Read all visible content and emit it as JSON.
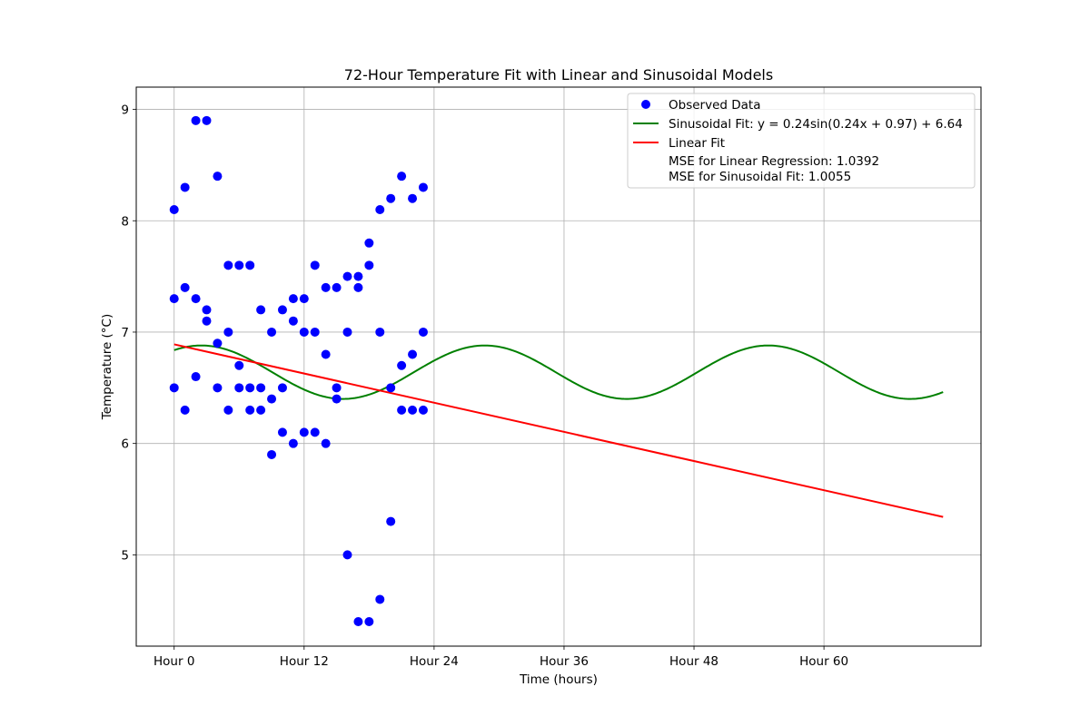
{
  "chart_data": {
    "type": "scatter",
    "title": "72-Hour Temperature Fit with Linear and Sinusoidal Models",
    "xlabel": "Time (hours)",
    "ylabel": "Temperature (°C)",
    "xlim": [
      -3.5,
      74.5
    ],
    "ylim": [
      4.18,
      9.2
    ],
    "xticks": [
      0,
      12,
      24,
      36,
      48,
      60
    ],
    "xtick_labels": [
      "Hour 0",
      "Hour 12",
      "Hour 24",
      "Hour 36",
      "Hour 48",
      "Hour 60"
    ],
    "yticks": [
      5,
      6,
      7,
      8,
      9
    ],
    "ytick_labels": [
      "5",
      "6",
      "7",
      "8",
      "9"
    ],
    "grid": true,
    "legend_position": "top-right",
    "series": [
      {
        "name": "Observed Data",
        "kind": "scatter",
        "color": "#0000ff",
        "points": [
          [
            0,
            8.1
          ],
          [
            0,
            7.3
          ],
          [
            0,
            6.5
          ],
          [
            1,
            8.3
          ],
          [
            1,
            7.4
          ],
          [
            1,
            6.3
          ],
          [
            2,
            8.9
          ],
          [
            2,
            7.3
          ],
          [
            2,
            6.6
          ],
          [
            3,
            8.9
          ],
          [
            3,
            7.2
          ],
          [
            3,
            7.1
          ],
          [
            4,
            8.4
          ],
          [
            4,
            6.9
          ],
          [
            4,
            6.5
          ],
          [
            5,
            7.6
          ],
          [
            5,
            7.0
          ],
          [
            5,
            6.3
          ],
          [
            6,
            7.6
          ],
          [
            6,
            6.7
          ],
          [
            6,
            6.5
          ],
          [
            7,
            7.6
          ],
          [
            7,
            6.5
          ],
          [
            7,
            6.3
          ],
          [
            8,
            7.2
          ],
          [
            8,
            6.5
          ],
          [
            8,
            6.3
          ],
          [
            9,
            7.0
          ],
          [
            9,
            6.4
          ],
          [
            9,
            5.9
          ],
          [
            10,
            7.2
          ],
          [
            10,
            6.5
          ],
          [
            10,
            6.1
          ],
          [
            11,
            7.3
          ],
          [
            11,
            7.1
          ],
          [
            11,
            6.0
          ],
          [
            12,
            7.3
          ],
          [
            12,
            7.0
          ],
          [
            12,
            6.1
          ],
          [
            13,
            7.6
          ],
          [
            13,
            7.0
          ],
          [
            13,
            6.1
          ],
          [
            14,
            7.4
          ],
          [
            14,
            6.8
          ],
          [
            14,
            6.0
          ],
          [
            15,
            7.4
          ],
          [
            15,
            6.5
          ],
          [
            15,
            6.4
          ],
          [
            16,
            7.5
          ],
          [
            16,
            7.0
          ],
          [
            16,
            5.0
          ],
          [
            17,
            7.5
          ],
          [
            17,
            7.4
          ],
          [
            17,
            4.4
          ],
          [
            18,
            7.8
          ],
          [
            18,
            7.6
          ],
          [
            18,
            4.4
          ],
          [
            19,
            8.1
          ],
          [
            19,
            7.0
          ],
          [
            19,
            4.6
          ],
          [
            20,
            8.2
          ],
          [
            20,
            6.5
          ],
          [
            20,
            5.3
          ],
          [
            21,
            8.4
          ],
          [
            21,
            6.7
          ],
          [
            21,
            6.3
          ],
          [
            22,
            8.2
          ],
          [
            22,
            6.8
          ],
          [
            22,
            6.3
          ],
          [
            23,
            8.3
          ],
          [
            23,
            7.0
          ],
          [
            23,
            6.3
          ]
        ]
      },
      {
        "name": "Sinusoidal Fit: y = 0.24sin(0.24x + 0.97) + 6.64",
        "kind": "line",
        "color": "#008000",
        "formula": {
          "amplitude": 0.24,
          "frequency": 0.24,
          "phase": 0.97,
          "offset": 6.64
        },
        "x_range": [
          0,
          71
        ]
      },
      {
        "name": "Linear Fit",
        "kind": "line",
        "color": "#ff0000",
        "x": [
          0,
          71
        ],
        "y": [
          6.89,
          5.34
        ]
      }
    ],
    "annotations": [
      "MSE for Linear Regression: 1.0392",
      "MSE for Sinusoidal Fit: 1.0055"
    ]
  }
}
